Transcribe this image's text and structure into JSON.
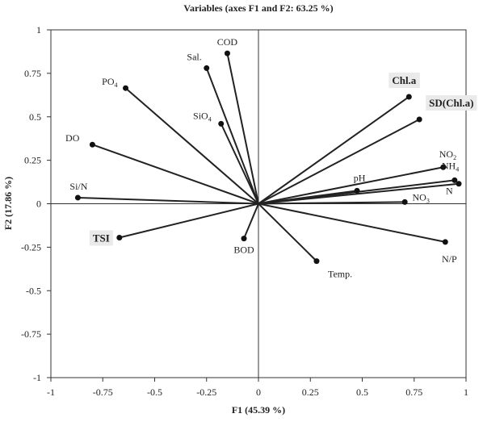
{
  "chart_data": {
    "type": "scatter",
    "title": "Variables (axes F1 and F2: 63.25 %)",
    "xlabel": "F1 (45.39 %)",
    "ylabel": "F2 (17.86 %)",
    "xlim": [
      -1,
      1
    ],
    "ylim": [
      -1,
      1
    ],
    "xticks": [
      "-1",
      "-0.75",
      "-0.5",
      "-0.25",
      "0",
      "0.25",
      "0.5",
      "0.75",
      "1"
    ],
    "yticks": [
      "1",
      "0.75",
      "0.5",
      "0.25",
      "0",
      "-0.25",
      "-0.5",
      "-0.75",
      "-1"
    ],
    "grid": false,
    "vectors_from_origin": true,
    "points": [
      {
        "label": "COD",
        "x": -0.15,
        "y": 0.865
      },
      {
        "label": "Sal.",
        "x": -0.25,
        "y": 0.78
      },
      {
        "label": "PO4",
        "x": -0.64,
        "y": 0.665
      },
      {
        "label": "SiO4",
        "x": -0.18,
        "y": 0.46
      },
      {
        "label": "DO",
        "x": -0.8,
        "y": 0.34
      },
      {
        "label": "Si/N",
        "x": -0.87,
        "y": 0.035
      },
      {
        "label": "TSI",
        "x": -0.67,
        "y": -0.195,
        "highlight": true
      },
      {
        "label": "BOD",
        "x": -0.07,
        "y": -0.2
      },
      {
        "label": "Temp.",
        "x": 0.28,
        "y": -0.33
      },
      {
        "label": "Chl.a",
        "x": 0.725,
        "y": 0.615,
        "highlight": true
      },
      {
        "label": "SD(Chl.a)",
        "x": 0.775,
        "y": 0.485,
        "highlight": true
      },
      {
        "label": "NO2",
        "x": 0.89,
        "y": 0.21
      },
      {
        "label": "NH4",
        "x": 0.945,
        "y": 0.135
      },
      {
        "label": "N",
        "x": 0.965,
        "y": 0.115
      },
      {
        "label": "pH",
        "x": 0.475,
        "y": 0.075
      },
      {
        "label": "NO3",
        "x": 0.705,
        "y": 0.01
      },
      {
        "label": "N/P",
        "x": 0.9,
        "y": -0.22
      }
    ]
  }
}
